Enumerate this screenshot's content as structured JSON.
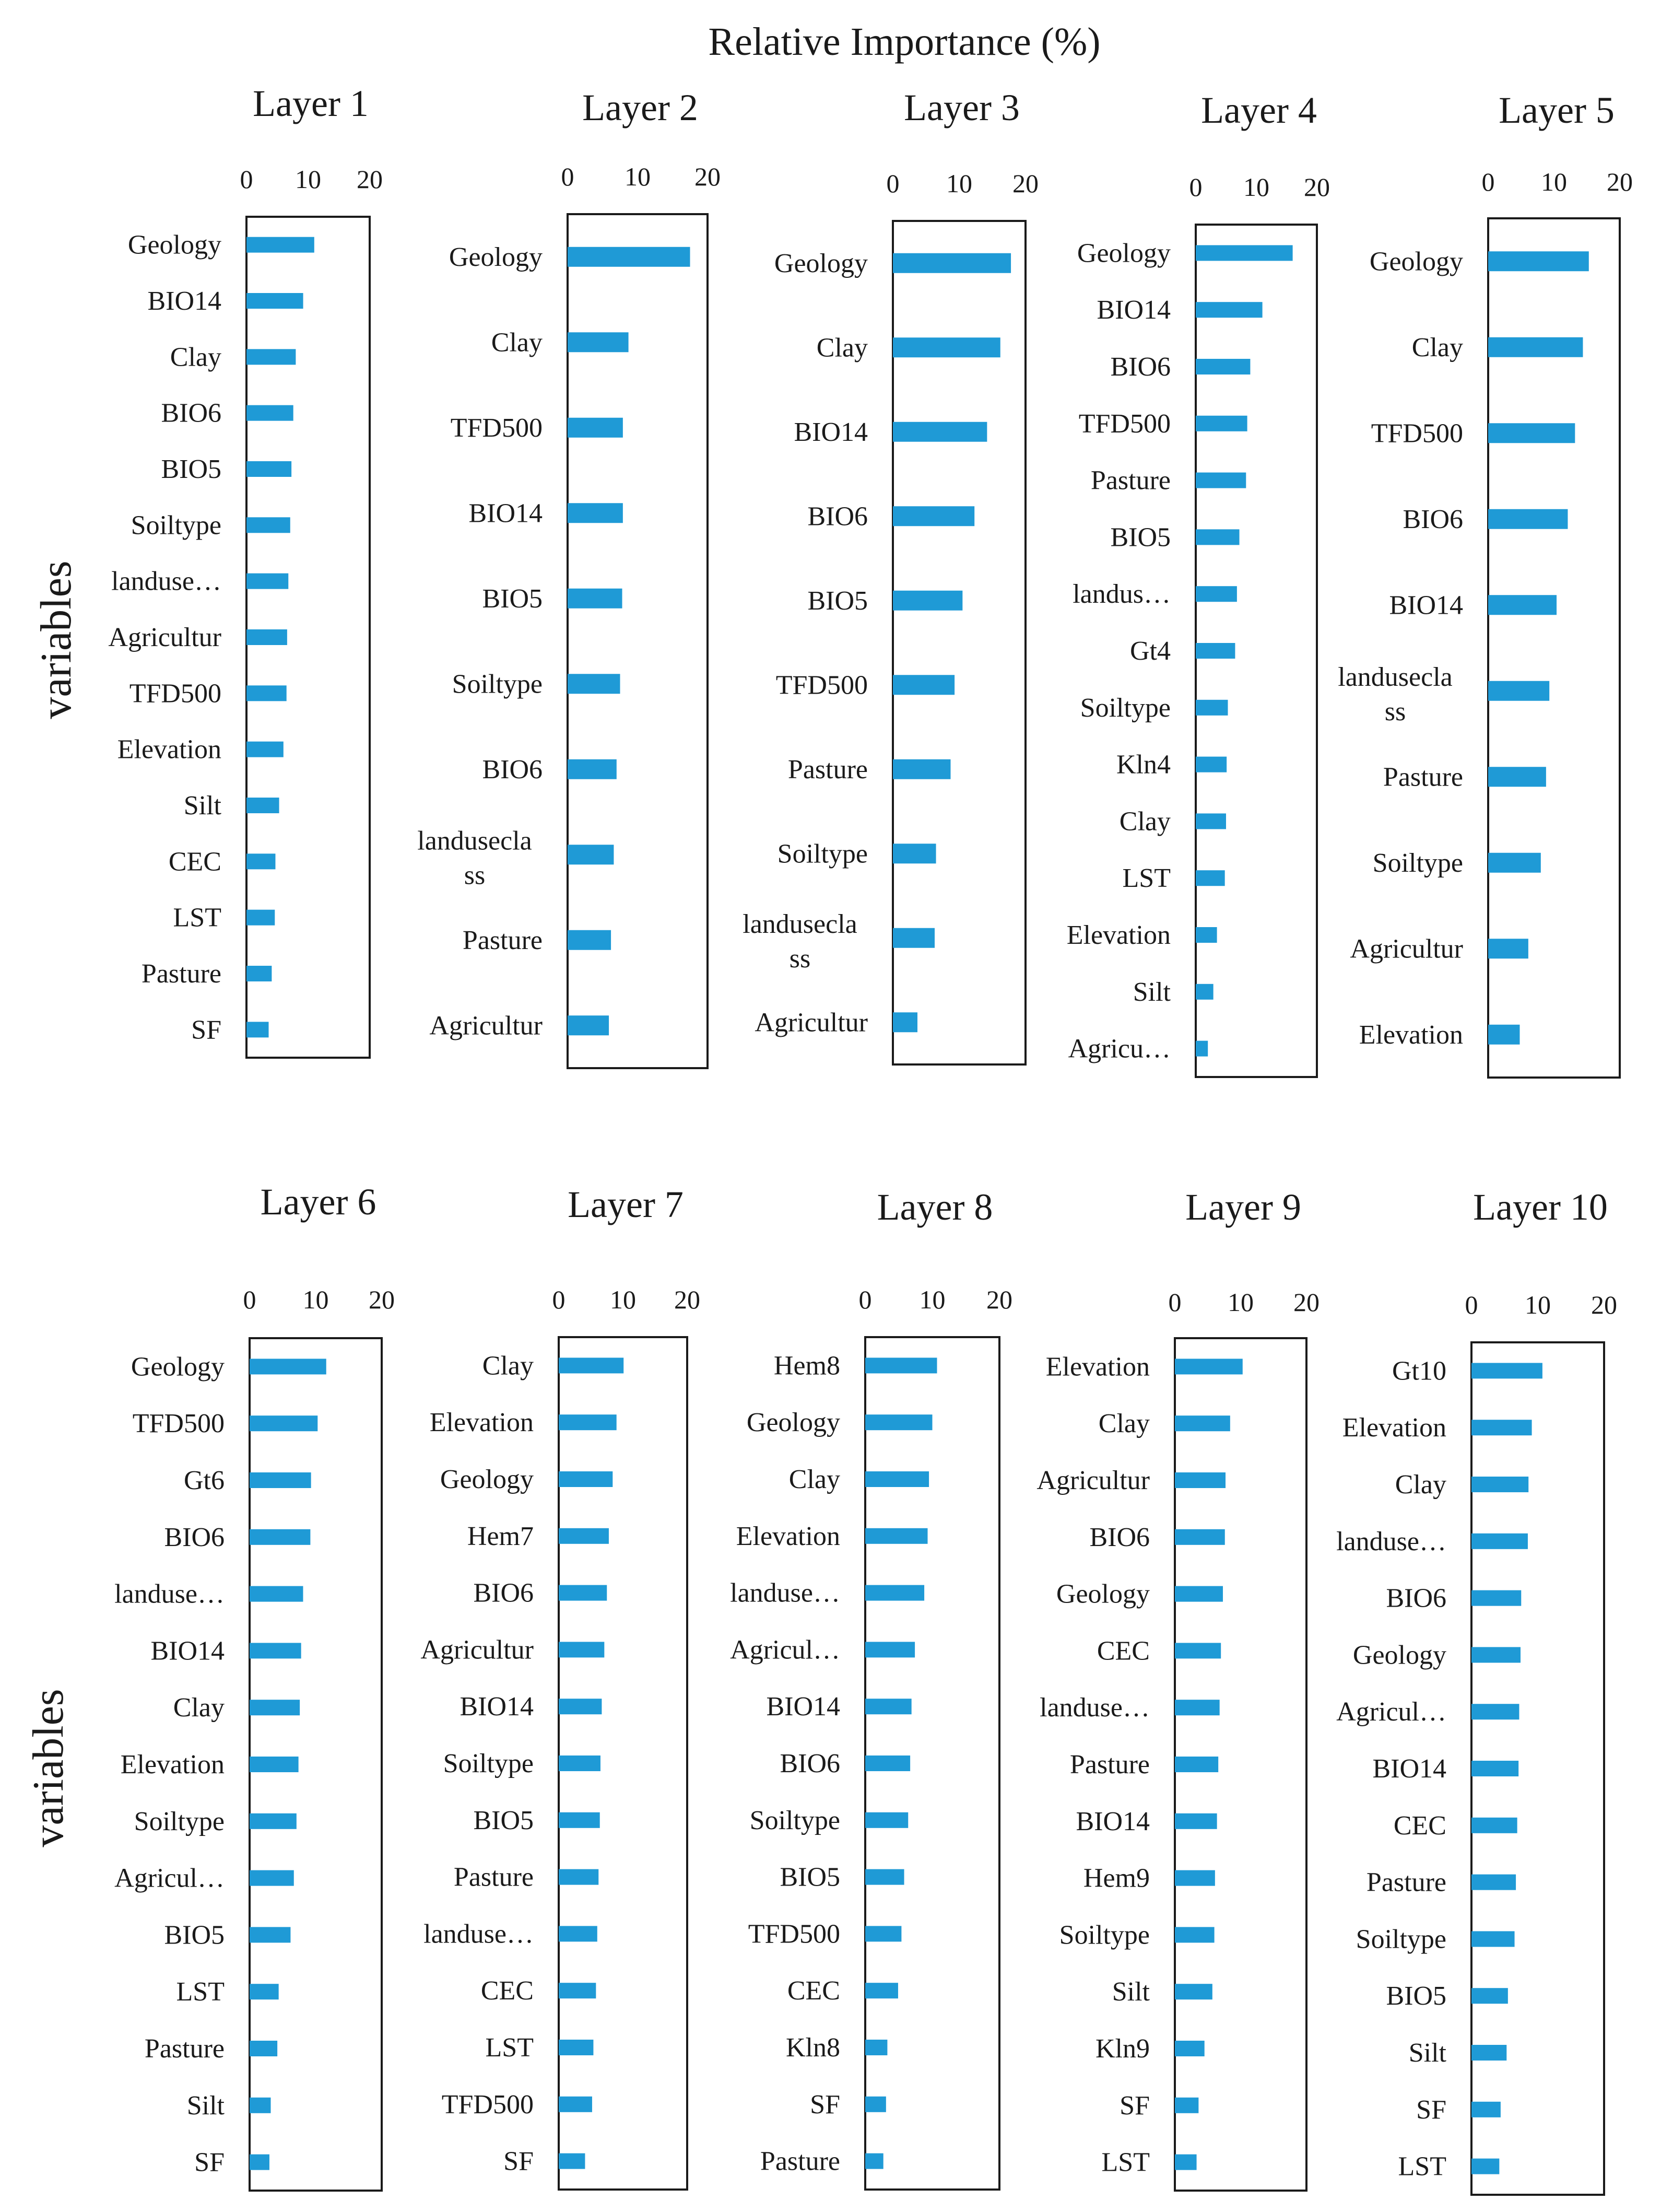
{
  "title": "Relative Importance (%)",
  "ylabel": "variables",
  "colors": {
    "bar": "#1f9ad6",
    "frame": "#1a1a1a",
    "text": "#1a1a1a"
  },
  "chart_data": [
    {
      "type": "bar",
      "orientation": "horizontal",
      "title": "Layer 1",
      "xlim": [
        0,
        20
      ],
      "xticks": [
        "0",
        "10",
        "20"
      ],
      "categories": [
        "Geology",
        "BIO14",
        "Clay",
        "BIO6",
        "BIO5",
        "Soiltype",
        "landuse…",
        "Agricultur",
        "TFD500",
        "Elevation",
        "Silt",
        "CEC",
        "LST",
        "Pasture",
        "SF"
      ],
      "values": [
        11,
        9.2,
        8,
        7.6,
        7.3,
        7.1,
        6.8,
        6.6,
        6.5,
        6,
        5.3,
        4.7,
        4.6,
        4.1,
        3.6
      ]
    },
    {
      "type": "bar",
      "orientation": "horizontal",
      "title": "Layer 2",
      "xlim": [
        0,
        20
      ],
      "xticks": [
        "0",
        "10",
        "20"
      ],
      "categories": [
        "Geology",
        "Clay",
        "TFD500",
        "BIO14",
        "BIO5",
        "Soiltype",
        "BIO6",
        "landusecla ss",
        "Pasture",
        "Agricultur"
      ],
      "values": [
        17.5,
        8.7,
        7.9,
        7.9,
        7.8,
        7.5,
        7,
        6.6,
        6.2,
        5.9
      ]
    },
    {
      "type": "bar",
      "orientation": "horizontal",
      "title": "Layer 3",
      "xlim": [
        0,
        20
      ],
      "xticks": [
        "0",
        "10",
        "20"
      ],
      "categories": [
        "Geology",
        "Clay",
        "BIO14",
        "BIO6",
        "BIO5",
        "TFD500",
        "Pasture",
        "Soiltype",
        "landusecla ss",
        "Agricultur"
      ],
      "values": [
        17.8,
        16.2,
        14.2,
        12.3,
        10.5,
        9.3,
        8.7,
        6.5,
        6.3,
        3.7
      ]
    },
    {
      "type": "bar",
      "orientation": "horizontal",
      "title": "Layer 4",
      "xlim": [
        0,
        20
      ],
      "xticks": [
        "0",
        "10",
        "20"
      ],
      "categories": [
        "Geology",
        "BIO14",
        "BIO6",
        "TFD500",
        "Pasture",
        "BIO5",
        "landus…",
        "Gt4",
        "Soiltype",
        "Kln4",
        "Clay",
        "LST",
        "Elevation",
        "Silt",
        "Agricu…"
      ],
      "values": [
        16,
        11,
        9,
        8.5,
        8.3,
        7.2,
        6.8,
        6.5,
        5.3,
        5.1,
        5,
        4.8,
        3.5,
        2.9,
        2
      ]
    },
    {
      "type": "bar",
      "orientation": "horizontal",
      "title": "Layer 5",
      "xlim": [
        0,
        20
      ],
      "xticks": [
        "0",
        "10",
        "20"
      ],
      "categories": [
        "Geology",
        "Clay",
        "TFD500",
        "BIO6",
        "BIO14",
        "landusecla ss",
        "Pasture",
        "Soiltype",
        "Agricultur",
        "Elevation"
      ],
      "values": [
        15.3,
        14.4,
        13.2,
        12.1,
        10.4,
        9.3,
        8.8,
        8,
        6.1,
        4.8
      ]
    },
    {
      "type": "bar",
      "orientation": "horizontal",
      "title": "Layer 6",
      "xlim": [
        0,
        20
      ],
      "xticks": [
        "0",
        "10",
        "20"
      ],
      "categories": [
        "Geology",
        "TFD500",
        "Gt6",
        "BIO6",
        "landuse…",
        "BIO14",
        "Clay",
        "Elevation",
        "Soiltype",
        "Agricul…",
        "BIO5",
        "LST",
        "Pasture",
        "Silt",
        "SF"
      ],
      "values": [
        11.6,
        10.3,
        9.3,
        9.2,
        8.1,
        7.8,
        7.6,
        7.4,
        7.1,
        6.7,
        6.2,
        4.4,
        4.2,
        3.2,
        3
      ]
    },
    {
      "type": "bar",
      "orientation": "horizontal",
      "title": "Layer 7",
      "xlim": [
        0,
        20
      ],
      "xticks": [
        "0",
        "10",
        "20"
      ],
      "categories": [
        "Clay",
        "Elevation",
        "Geology",
        "Hem7",
        "BIO6",
        "Agricultur",
        "BIO14",
        "Soiltype",
        "BIO5",
        "Pasture",
        "landuse…",
        "CEC",
        "LST",
        "TFD500",
        "SF"
      ],
      "values": [
        10.1,
        9,
        8.4,
        7.8,
        7.5,
        7.1,
        6.7,
        6.5,
        6.4,
        6.2,
        6,
        5.8,
        5.4,
        5.2,
        4.1
      ]
    },
    {
      "type": "bar",
      "orientation": "horizontal",
      "title": "Layer 8",
      "xlim": [
        0,
        20
      ],
      "xticks": [
        "0",
        "10",
        "20"
      ],
      "categories": [
        "Hem8",
        "Geology",
        "Clay",
        "Elevation",
        "landuse…",
        "Agricul…",
        "BIO14",
        "BIO6",
        "Soiltype",
        "BIO5",
        "TFD500",
        "CEC",
        "Kln8",
        "SF",
        "Pasture"
      ],
      "values": [
        10.7,
        10,
        9.5,
        9.3,
        8.8,
        7.4,
        6.9,
        6.7,
        6.4,
        5.8,
        5.4,
        4.9,
        3.3,
        3.1,
        2.7
      ]
    },
    {
      "type": "bar",
      "orientation": "horizontal",
      "title": "Layer 9",
      "xlim": [
        0,
        20
      ],
      "xticks": [
        "0",
        "10",
        "20"
      ],
      "categories": [
        "Elevation",
        "Clay",
        "Agricultur",
        "BIO6",
        "Geology",
        "CEC",
        "landuse…",
        "Pasture",
        "BIO14",
        "Hem9",
        "Soiltype",
        "Silt",
        "Kln9",
        "SF",
        "LST"
      ],
      "values": [
        10.3,
        8.4,
        7.7,
        7.6,
        7.3,
        7,
        6.8,
        6.6,
        6.4,
        6.1,
        6,
        5.7,
        4.5,
        3.6,
        3.3
      ]
    },
    {
      "type": "bar",
      "orientation": "horizontal",
      "title": "Layer 10",
      "xlim": [
        0,
        20
      ],
      "xticks": [
        "0",
        "10",
        "20"
      ],
      "categories": [
        "Gt10",
        "Elevation",
        "Clay",
        "landuse…",
        "BIO6",
        "Geology",
        "Agricul…",
        "BIO14",
        "CEC",
        "Pasture",
        "Soiltype",
        "BIO5",
        "Silt",
        "SF",
        "LST"
      ],
      "values": [
        10.7,
        9.1,
        8.6,
        8.5,
        7.5,
        7.4,
        7.2,
        7.1,
        6.9,
        6.7,
        6.5,
        5.5,
        5.3,
        4.4,
        4.2
      ]
    }
  ]
}
